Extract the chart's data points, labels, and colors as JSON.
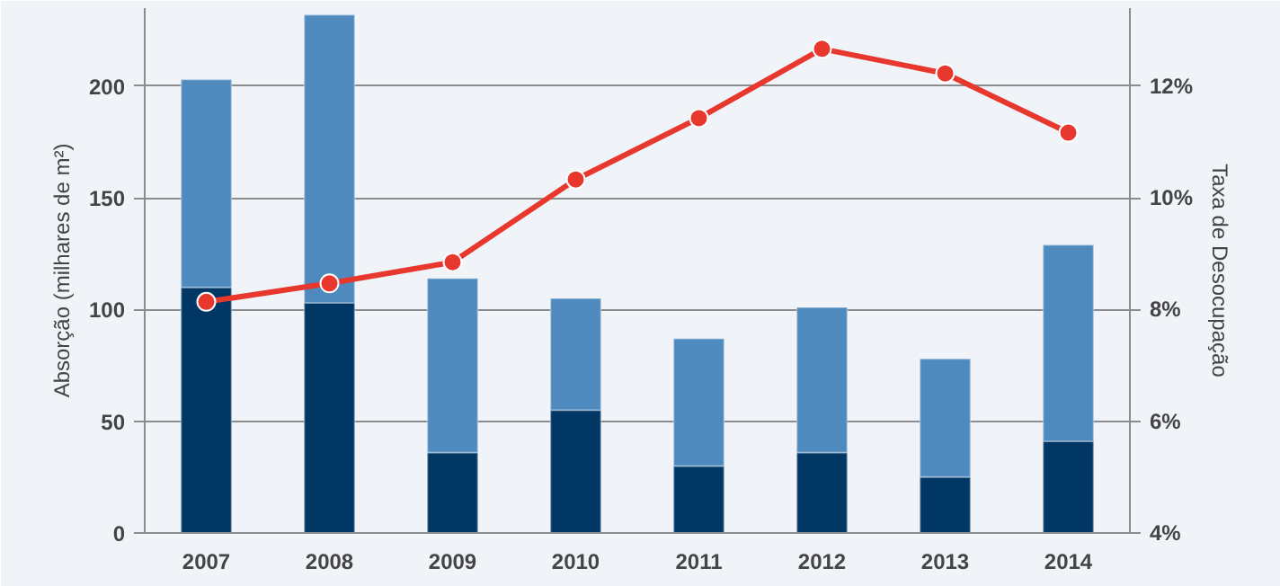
{
  "chart_data": {
    "type": "bar",
    "stacked": true,
    "categories": [
      "2007",
      "2008",
      "2009",
      "2010",
      "2011",
      "2012",
      "2013",
      "2014"
    ],
    "ylabel": "Absorção (milhares de m²)",
    "y2label": "Taxa de Desocupação",
    "ylim": [
      0,
      235
    ],
    "yticks": [
      0,
      50,
      100,
      150,
      200
    ],
    "y2lim": [
      4,
      13.4
    ],
    "y2ticks": [
      {
        "value": 4,
        "label": "4%"
      },
      {
        "value": 6,
        "label": "6%"
      },
      {
        "value": 8,
        "label": "8%"
      },
      {
        "value": 10,
        "label": "10%"
      },
      {
        "value": 12,
        "label": "12%"
      }
    ],
    "grid": "y",
    "marker": "circle",
    "series": [
      {
        "color": "#003764",
        "values": [
          110,
          103,
          36,
          55,
          30,
          36,
          25,
          41
        ]
      },
      {
        "color": "#4f8abf",
        "values": [
          93,
          129,
          78,
          50,
          57,
          65,
          53,
          88
        ]
      },
      {
        "type": "line",
        "axis": "y2",
        "color": "#e8372c",
        "values": [
          8.14,
          8.47,
          8.85,
          10.33,
          11.43,
          12.67,
          12.23,
          11.17
        ]
      }
    ]
  }
}
